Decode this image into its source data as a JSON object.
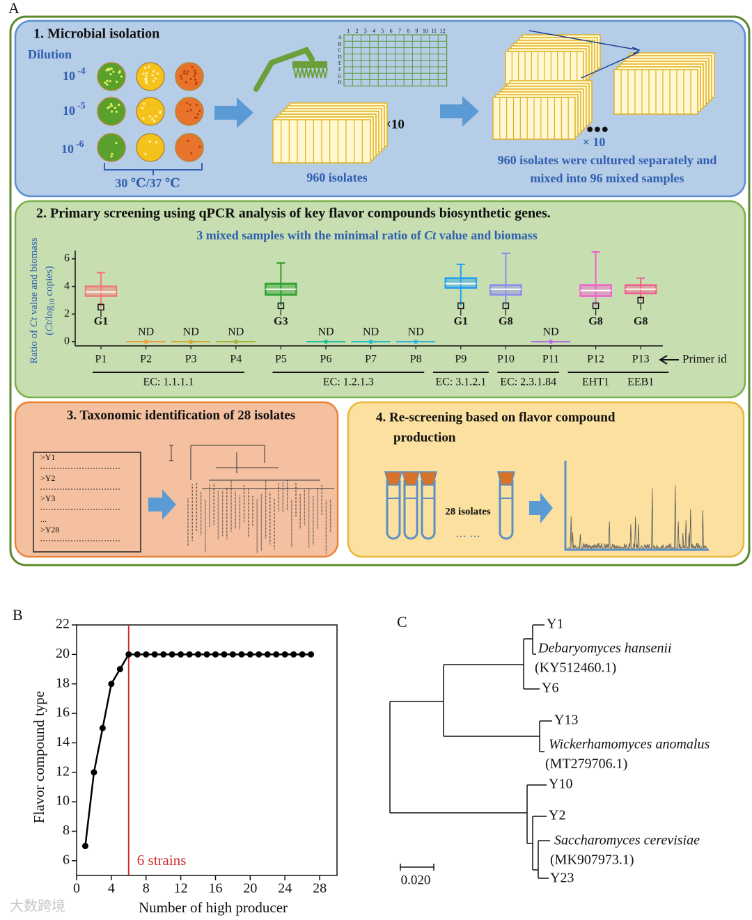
{
  "panel_labels": {
    "a": "A",
    "b": "B",
    "c": "C"
  },
  "step1": {
    "title": "1. Microbial isolation",
    "dilution_label": "Dilution",
    "dilutions": [
      {
        "base": "10",
        "exponent": "-4"
      },
      {
        "base": "10",
        "exponent": "-5"
      },
      {
        "base": "10",
        "exponent": "-6"
      }
    ],
    "temperature": "30 ℃/37 ℃",
    "plate_rows": [
      "A",
      "B",
      "C",
      "D",
      "E",
      "F",
      "G",
      "H"
    ],
    "plate_columns": [
      "1",
      "2",
      "3",
      "4",
      "5",
      "6",
      "7",
      "8",
      "9",
      "10",
      "11",
      "12"
    ],
    "replicates": "×10",
    "isolates": "960 isolates",
    "mixes": "× 10",
    "caption": [
      "960 isolates were cultured separately and",
      "mixed into 96 mixed samples"
    ]
  },
  "step2": {
    "title": "2. Primary screening using qPCR analysis of key flavor compounds biosynthetic genes.",
    "subtitle": [
      "3 mixed samples with the minimal ratio of ",
      "Ct",
      " value and biomass"
    ],
    "axis_pointer": "Primer id"
  },
  "step3": {
    "title": "3. Taxonomic identification of 28 isolates",
    "sequences": [
      ">Y1",
      ">Y2",
      ">Y3",
      "...",
      ">Y28"
    ]
  },
  "step4": {
    "title": [
      "4. Re-screening based on flavor compound",
      "production"
    ],
    "isolates": "28 isolates",
    "ellipsis": "… …"
  },
  "chart_data": [
    {
      "type": "line",
      "xlabel": "Number of high producer",
      "ylabel": "Flavor compound type",
      "x": [
        1,
        2,
        3,
        4,
        5,
        6,
        7,
        8,
        9,
        10,
        11,
        12,
        13,
        14,
        15,
        16,
        17,
        18,
        19,
        20,
        21,
        22,
        23,
        24,
        25,
        26,
        27
      ],
      "series": [
        {
          "name": "Flavor compound type",
          "color": "#000000",
          "values": [
            7,
            12,
            15,
            18,
            19,
            20,
            20,
            20,
            20,
            20,
            20,
            20,
            20,
            20,
            20,
            20,
            20,
            20,
            20,
            20,
            20,
            20,
            20,
            20,
            20,
            20,
            20
          ]
        }
      ],
      "xlim": [
        0,
        30
      ],
      "xticks": [
        0,
        4,
        8,
        12,
        16,
        20,
        24,
        28
      ],
      "ylim": [
        5,
        22
      ],
      "yticks": [
        6,
        8,
        10,
        12,
        14,
        16,
        18,
        20,
        22
      ],
      "threshold": {
        "x": 6,
        "label": "6 strains",
        "color": "#d22b2b"
      },
      "grid": false
    },
    {
      "type": "box",
      "ylabel": {
        "line1": [
          "Ratio of ",
          "Ct",
          " value and biomass"
        ],
        "line2": [
          "(",
          "Ct",
          "/log",
          "10",
          " copies)"
        ]
      },
      "ylim": [
        0,
        6.6
      ],
      "yticks": [
        0,
        2,
        4,
        6
      ],
      "groups": [
        {
          "label": "EC: 1.1.1.1",
          "primers": [
            {
              "name": "P1",
              "color": "#f47878",
              "note": "G1",
              "box": {
                "min": 2.5,
                "q1": 3.3,
                "median": 3.6,
                "q3": 4.0,
                "max": 5.0
              }
            },
            {
              "name": "P2",
              "color": "#e8a040",
              "note": "ND"
            },
            {
              "name": "P3",
              "color": "#d2a838",
              "note": "ND"
            },
            {
              "name": "P4",
              "color": "#a8b43a",
              "note": "ND"
            }
          ]
        },
        {
          "label": "EC: 1.2.1.3",
          "primers": [
            {
              "name": "P5",
              "color": "#2ca02c",
              "note": "G3",
              "box": {
                "min": 2.6,
                "q1": 3.4,
                "median": 3.8,
                "q3": 4.2,
                "max": 5.7
              }
            },
            {
              "name": "P6",
              "color": "#22c09a",
              "note": "ND"
            },
            {
              "name": "P7",
              "color": "#22c0c0",
              "note": "ND"
            },
            {
              "name": "P8",
              "color": "#36b4d8",
              "note": "ND"
            }
          ]
        },
        {
          "label": "EC: 3.1.2.1",
          "primers": [
            {
              "name": "P9",
              "color": "#1e9ff2",
              "note": "G1",
              "box": {
                "min": 2.6,
                "q1": 3.9,
                "median": 4.2,
                "q3": 4.6,
                "max": 5.6
              }
            }
          ]
        },
        {
          "label": "EC: 2.3.1.84",
          "primers": [
            {
              "name": "P10",
              "color": "#8c8cf0",
              "note": "G8",
              "box": {
                "min": 2.6,
                "q1": 3.4,
                "median": 3.8,
                "q3": 4.1,
                "max": 6.4
              }
            },
            {
              "name": "P11",
              "color": "#b070e0",
              "note": "ND"
            }
          ]
        },
        {
          "label": "EHT1",
          "primers": [
            {
              "name": "P12",
              "color": "#f060d0",
              "note": "G8",
              "box": {
                "min": 2.6,
                "q1": 3.3,
                "median": 3.7,
                "q3": 4.1,
                "max": 6.5
              }
            }
          ]
        },
        {
          "label": "EEB1",
          "primers": [
            {
              "name": "P13",
              "color": "#f06090",
              "note": "G8",
              "box": {
                "min": 3.0,
                "q1": 3.5,
                "median": 3.8,
                "q3": 4.1,
                "max": 4.6
              }
            }
          ]
        }
      ]
    }
  ],
  "panel_c": {
    "clades": [
      {
        "isolates": [
          "Y1",
          "Y6"
        ],
        "species": "Debaryomyces hansenii",
        "accession": "(KY512460.1)"
      },
      {
        "isolates": [
          "Y13"
        ],
        "species": "Wickerhamomyces anomalus",
        "accession": "(MT279706.1)"
      },
      {
        "isolates": [
          "Y10",
          "Y2",
          "Y23"
        ],
        "species": "Saccharomyces cerevisiae",
        "accession": "(MK907973.1)"
      }
    ],
    "scale_bar": "0.020"
  },
  "watermark": "大数跨境"
}
